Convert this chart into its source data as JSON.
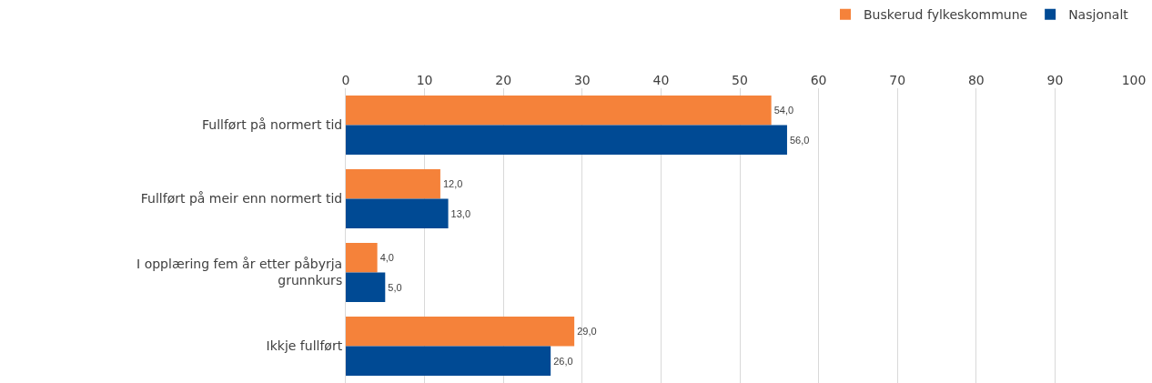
{
  "chart_data": {
    "type": "bar",
    "orientation": "horizontal",
    "categories": [
      "Fullført på normert tid",
      "Fullført på meir enn normert tid",
      "I opplæring fem år etter påbyrja grunnkurs",
      "Ikkje fullført"
    ],
    "series": [
      {
        "name": "Buskerud fylkeskommune",
        "color": "#f5823a",
        "values": [
          54,
          12,
          4,
          29
        ],
        "value_labels": [
          "54,0",
          "12,0",
          "4,0",
          "29,0"
        ]
      },
      {
        "name": "Nasjonalt",
        "color": "#004a94",
        "values": [
          56,
          13,
          5,
          26
        ],
        "value_labels": [
          "56,0",
          "13,0",
          "5,0",
          "26,0"
        ]
      }
    ],
    "xlim": [
      0,
      100
    ],
    "xticks": [
      0,
      10,
      20,
      30,
      40,
      50,
      60,
      70,
      80,
      90,
      100
    ],
    "grid": "x",
    "legend": "top right"
  }
}
